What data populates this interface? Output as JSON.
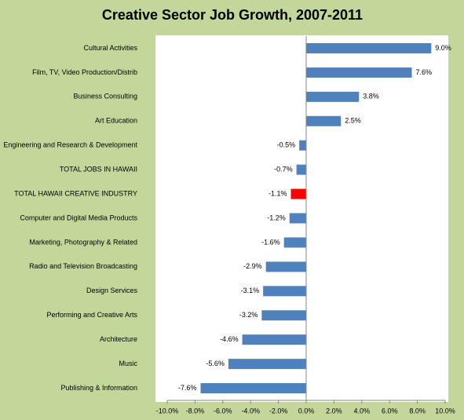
{
  "chart_data": {
    "type": "hbar",
    "title": "Creative Sector Job Growth, 2007-2011",
    "categories": [
      "Cultural Activities",
      "Film, TV, Video Production/Distrib",
      "Business Consulting",
      "Art Education",
      "Engineering and Research & Development",
      "TOTAL JOBS IN HAWAII",
      "TOTAL HAWAII CREATIVE INDUSTRY",
      "Computer and Digital Media Products",
      "Marketing, Photography  & Related",
      "Radio and Television Broadcasting",
      "Design Services",
      "Performing and Creative Arts",
      "Architecture",
      "Music",
      "Publishing & Information"
    ],
    "values": [
      9.0,
      7.6,
      3.8,
      2.5,
      -0.5,
      -0.7,
      -1.1,
      -1.2,
      -1.6,
      -2.9,
      -3.1,
      -3.2,
      -4.6,
      -5.6,
      -7.6
    ],
    "value_labels": [
      "9.0%",
      "7.6%",
      "3.8%",
      "2.5%",
      "-0.5%",
      "-0.7%",
      "-1.1%",
      "-1.2%",
      "-1.6%",
      "-2.9%",
      "-3.1%",
      "-3.2%",
      "-4.6%",
      "-5.6%",
      "-7.6%"
    ],
    "colors": [
      "#4f81bd",
      "#4f81bd",
      "#4f81bd",
      "#4f81bd",
      "#4f81bd",
      "#4f81bd",
      "#ff0000",
      "#4f81bd",
      "#4f81bd",
      "#4f81bd",
      "#4f81bd",
      "#4f81bd",
      "#4f81bd",
      "#4f81bd",
      "#4f81bd"
    ],
    "xlim": [
      -10,
      10
    ],
    "xticks": [
      {
        "value": -10,
        "label": "-10.0%"
      },
      {
        "value": -8,
        "label": "-8.0%"
      },
      {
        "value": -6,
        "label": "-6.0%"
      },
      {
        "value": -4,
        "label": "-4.0%"
      },
      {
        "value": -2,
        "label": "-2.0%"
      },
      {
        "value": 0,
        "label": "0.0%"
      },
      {
        "value": 2,
        "label": "2.0%"
      },
      {
        "value": 4,
        "label": "4.0%"
      },
      {
        "value": 6,
        "label": "6.0%"
      },
      {
        "value": 8,
        "label": "8.0%"
      },
      {
        "value": 10,
        "label": "10.0%"
      }
    ]
  }
}
